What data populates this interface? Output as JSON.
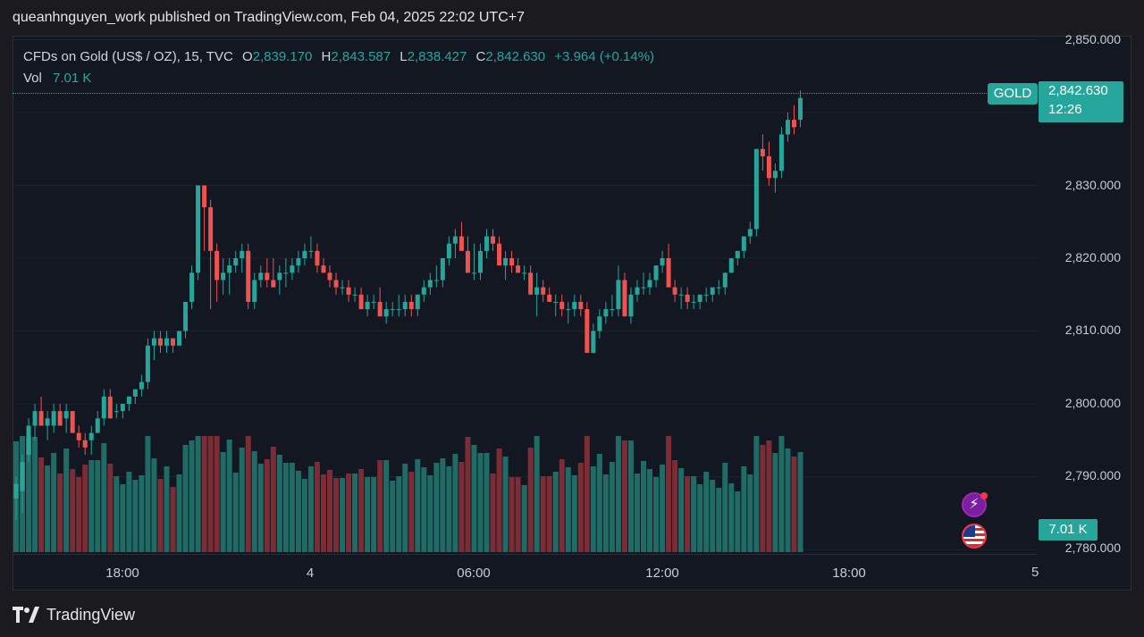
{
  "publish_line": "queanhnguyen_work published on TradingView.com, Feb 04, 2025 22:02 UTC+7",
  "legend": {
    "instrument": "CFDs on Gold (US$ / OZ), 15, TVC",
    "o_label": "O",
    "o_value": "2,839.170",
    "h_label": "H",
    "h_value": "2,843.587",
    "l_label": "L",
    "l_value": "2,838.427",
    "c_label": "C",
    "c_value": "2,842.630",
    "change": "+3.964 (+0.14%)",
    "vol_label": "Vol",
    "vol_value": "7.01 K"
  },
  "price_axis": {
    "ticks": [
      "2,850.000",
      "2,830.000",
      "2,820.000",
      "2,810.000",
      "2,800.000",
      "2,790.000",
      "2,780.000"
    ]
  },
  "time_axis": {
    "ticks": [
      "18:00",
      "4",
      "06:00",
      "12:00",
      "18:00"
    ],
    "cut_label": "5"
  },
  "tags": {
    "symbol": "GOLD",
    "last_price": "2,842.630",
    "countdown": "12:26",
    "volume": "7.01 K"
  },
  "footer": {
    "brand": "TradingView"
  },
  "colors": {
    "up": "#26a69a",
    "down": "#ef5350",
    "vol_up": "#1f6b66",
    "vol_down": "#7c2c34",
    "background": "#131722"
  },
  "icons": [
    "bolt-icon",
    "us-flag-icon",
    "tradingview-logo-icon"
  ],
  "chart_data": {
    "type": "candlestick",
    "interval": "15",
    "y_range": [
      2780,
      2852
    ],
    "candles": [
      [
        2787,
        2790,
        2784,
        2789
      ],
      [
        2788,
        2793,
        2785,
        2792
      ],
      [
        2793,
        2798,
        2792,
        2797
      ],
      [
        2797,
        2800,
        2795,
        2799
      ],
      [
        2799,
        2801,
        2797,
        2797
      ],
      [
        2797,
        2799,
        2795,
        2798
      ],
      [
        2797,
        2800,
        2796,
        2799
      ],
      [
        2799,
        2800,
        2797,
        2797
      ],
      [
        2798,
        2800,
        2796,
        2799
      ],
      [
        2799,
        2799,
        2796,
        2796
      ],
      [
        2796,
        2797,
        2794,
        2795
      ],
      [
        2795,
        2796,
        2793,
        2794
      ],
      [
        2795,
        2797,
        2793,
        2796
      ],
      [
        2796,
        2799,
        2796,
        2798
      ],
      [
        2798,
        2802,
        2797,
        2801
      ],
      [
        2801,
        2802,
        2798,
        2798
      ],
      [
        2799,
        2800,
        2798,
        2799
      ],
      [
        2799,
        2800,
        2798,
        2800
      ],
      [
        2800,
        2801,
        2799,
        2801
      ],
      [
        2801,
        2802,
        2800,
        2802
      ],
      [
        2802,
        2804,
        2801,
        2803
      ],
      [
        2803,
        2809,
        2802,
        2808
      ],
      [
        2808,
        2810,
        2806,
        2809
      ],
      [
        2809,
        2810,
        2807,
        2808
      ],
      [
        2808,
        2810,
        2807,
        2809
      ],
      [
        2809,
        2809,
        2807,
        2808
      ],
      [
        2808,
        2810,
        2808,
        2810
      ],
      [
        2810,
        2814,
        2809,
        2814
      ],
      [
        2814,
        2819,
        2813,
        2818
      ],
      [
        2818,
        2830,
        2817,
        2830
      ],
      [
        2830,
        2830,
        2821,
        2827
      ],
      [
        2827,
        2828,
        2813,
        2821
      ],
      [
        2821,
        2822,
        2814,
        2817
      ],
      [
        2817,
        2820,
        2815,
        2818
      ],
      [
        2818,
        2820,
        2815,
        2819
      ],
      [
        2819,
        2821,
        2818,
        2820
      ],
      [
        2820,
        2822,
        2818,
        2821
      ],
      [
        2821,
        2822,
        2813,
        2814
      ],
      [
        2814,
        2818,
        2813,
        2817
      ],
      [
        2817,
        2819,
        2816,
        2818
      ],
      [
        2818,
        2820,
        2816,
        2817
      ],
      [
        2817,
        2820,
        2816,
        2816
      ],
      [
        2817,
        2819,
        2815,
        2818
      ],
      [
        2818,
        2820,
        2816,
        2818
      ],
      [
        2818,
        2820,
        2817,
        2819
      ],
      [
        2819,
        2821,
        2818,
        2820
      ],
      [
        2820,
        2822,
        2819,
        2821
      ],
      [
        2821,
        2823,
        2820,
        2821
      ],
      [
        2821,
        2822,
        2818,
        2819
      ],
      [
        2819,
        2820,
        2818,
        2818
      ],
      [
        2818,
        2819,
        2816,
        2817
      ],
      [
        2817,
        2818,
        2815,
        2816
      ],
      [
        2816,
        2817,
        2815,
        2816
      ],
      [
        2816,
        2817,
        2814,
        2815
      ],
      [
        2815,
        2816,
        2814,
        2815
      ],
      [
        2815,
        2816,
        2813,
        2813
      ],
      [
        2813,
        2815,
        2812,
        2814
      ],
      [
        2814,
        2815,
        2813,
        2814
      ],
      [
        2814,
        2816,
        2812,
        2812
      ],
      [
        2812,
        2814,
        2811,
        2813
      ],
      [
        2813,
        2814,
        2812,
        2813
      ],
      [
        2813,
        2815,
        2812,
        2813
      ],
      [
        2813,
        2815,
        2812,
        2814
      ],
      [
        2814,
        2815,
        2812,
        2813
      ],
      [
        2813,
        2815,
        2812,
        2815
      ],
      [
        2815,
        2817,
        2814,
        2816
      ],
      [
        2816,
        2818,
        2815,
        2817
      ],
      [
        2817,
        2819,
        2816,
        2817
      ],
      [
        2817,
        2820,
        2816,
        2820
      ],
      [
        2820,
        2823,
        2819,
        2822
      ],
      [
        2822,
        2824,
        2820,
        2823
      ],
      [
        2823,
        2825,
        2821,
        2821
      ],
      [
        2821,
        2823,
        2818,
        2818
      ],
      [
        2818,
        2822,
        2817,
        2818
      ],
      [
        2818,
        2822,
        2817,
        2821
      ],
      [
        2821,
        2824,
        2820,
        2823
      ],
      [
        2823,
        2824,
        2821,
        2822
      ],
      [
        2822,
        2823,
        2819,
        2819
      ],
      [
        2819,
        2821,
        2817,
        2820
      ],
      [
        2820,
        2821,
        2818,
        2819
      ],
      [
        2819,
        2820,
        2818,
        2818
      ],
      [
        2818,
        2819,
        2817,
        2818
      ],
      [
        2818,
        2819,
        2815,
        2815
      ],
      [
        2815,
        2818,
        2812,
        2816
      ],
      [
        2816,
        2817,
        2814,
        2815
      ],
      [
        2815,
        2816,
        2814,
        2814
      ],
      [
        2814,
        2815,
        2812,
        2814
      ],
      [
        2814,
        2815,
        2812,
        2813
      ],
      [
        2813,
        2814,
        2811,
        2813
      ],
      [
        2813,
        2815,
        2812,
        2814
      ],
      [
        2814,
        2815,
        2812,
        2813
      ],
      [
        2813,
        2814,
        2807,
        2807
      ],
      [
        2807,
        2811,
        2807,
        2810
      ],
      [
        2810,
        2813,
        2809,
        2812
      ],
      [
        2812,
        2814,
        2811,
        2813
      ],
      [
        2813,
        2815,
        2812,
        2813
      ],
      [
        2813,
        2819,
        2812,
        2817
      ],
      [
        2817,
        2818,
        2812,
        2812
      ],
      [
        2812,
        2816,
        2811,
        2815
      ],
      [
        2815,
        2817,
        2814,
        2816
      ],
      [
        2816,
        2818,
        2815,
        2816
      ],
      [
        2816,
        2818,
        2815,
        2817
      ],
      [
        2817,
        2819,
        2816,
        2819
      ],
      [
        2819,
        2821,
        2818,
        2820
      ],
      [
        2820,
        2822,
        2816,
        2816
      ],
      [
        2816,
        2817,
        2814,
        2815
      ],
      [
        2815,
        2816,
        2813,
        2815
      ],
      [
        2815,
        2816,
        2813,
        2814
      ],
      [
        2814,
        2815,
        2813,
        2814
      ],
      [
        2814,
        2815,
        2813,
        2815
      ],
      [
        2815,
        2816,
        2814,
        2815
      ],
      [
        2815,
        2816,
        2814,
        2816
      ],
      [
        2816,
        2817,
        2815,
        2816
      ],
      [
        2816,
        2818,
        2815,
        2818
      ],
      [
        2818,
        2820,
        2818,
        2820
      ],
      [
        2820,
        2821,
        2819,
        2821
      ],
      [
        2821,
        2823,
        2820,
        2823
      ],
      [
        2823,
        2825,
        2822,
        2824
      ],
      [
        2824,
        2835,
        2823,
        2835
      ],
      [
        2835,
        2837,
        2832,
        2834
      ],
      [
        2834,
        2836,
        2830,
        2831
      ],
      [
        2831,
        2833,
        2829,
        2832
      ],
      [
        2832,
        2838,
        2831,
        2837
      ],
      [
        2837,
        2840,
        2836,
        2839
      ],
      [
        2839,
        2841,
        2837,
        2838
      ],
      [
        2839,
        2843,
        2838,
        2842
      ]
    ],
    "volume_shape": "volume bars follow candle direction; last bar 7.01 K"
  }
}
